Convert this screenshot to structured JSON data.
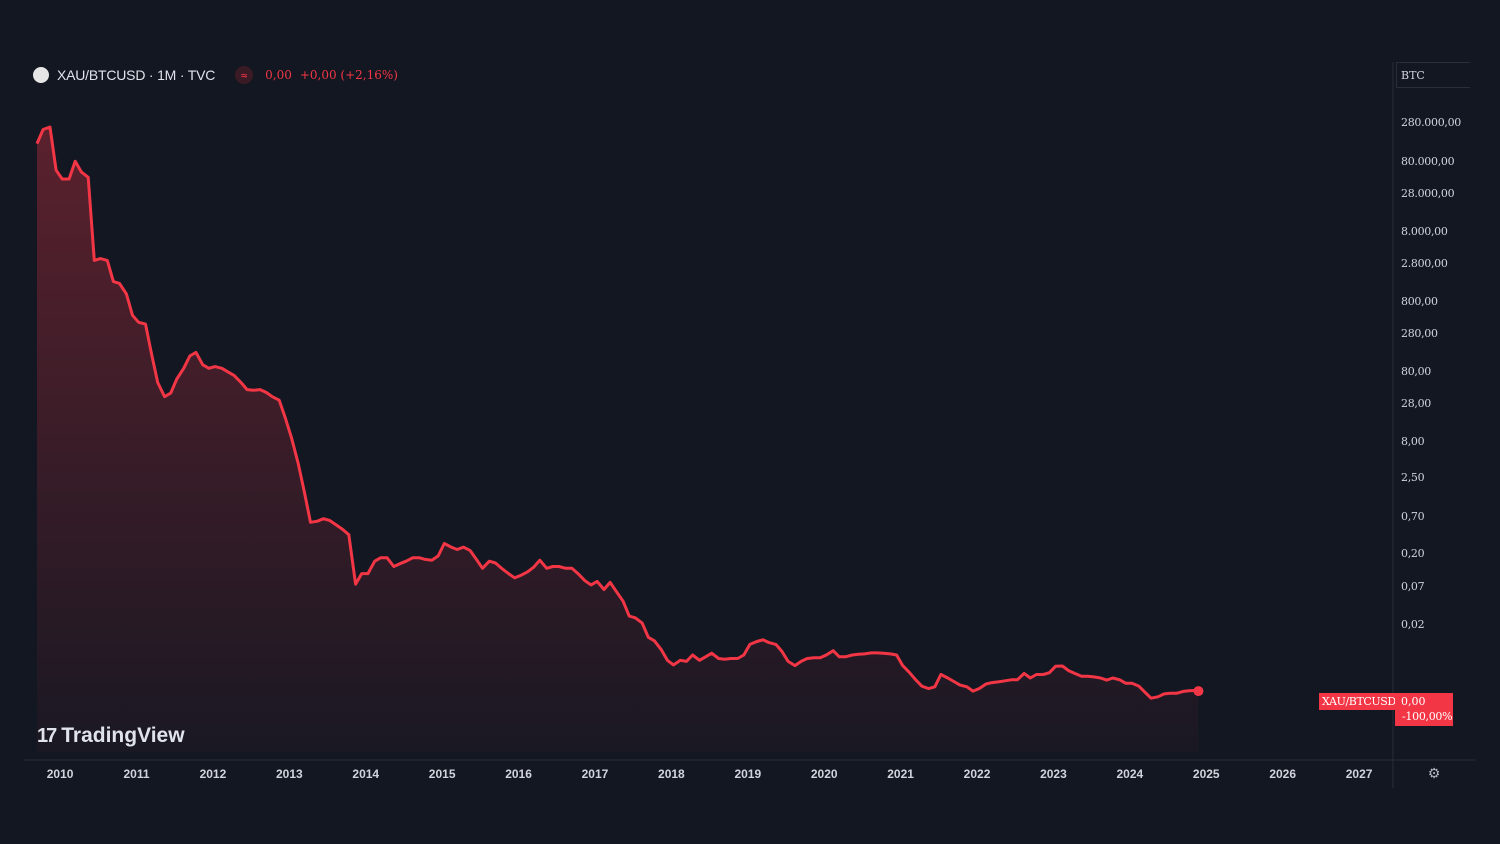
{
  "header": {
    "title": "XAU/BTCUSD · 1M · TVC",
    "eq_symbol": "≈",
    "last_value": "0,00",
    "change": "+0,00 (+2,16%)"
  },
  "price_axis": {
    "currency": "BTC"
  },
  "last_price_tag": {
    "symbol": "XAU/BTCUSD",
    "value": "0,00",
    "percent": "-100,00%"
  },
  "watermark": {
    "text": "TradingView",
    "mark": "17"
  },
  "settings_icon": "gear-icon",
  "colors": {
    "background": "#131722",
    "line": "#f23645",
    "text": "#d1d4dc",
    "grid": "#2a2e39"
  },
  "chart_data": {
    "type": "area",
    "title": "XAU/BTCUSD · 1M · TVC",
    "y_scale": "percent (log-like)",
    "y_tick_labels": [
      "280.000,00",
      "80.000,00",
      "28.000,00",
      "8.000,00",
      "2.800,00",
      "800,00",
      "280,00",
      "80,00",
      "28,00",
      "8,00",
      "2,50",
      "0,70",
      "0,20",
      "0,07",
      "0,02"
    ],
    "x_tick_labels": [
      "2010",
      "2011",
      "2012",
      "2013",
      "2014",
      "2015",
      "2016",
      "2017",
      "2018",
      "2019",
      "2020",
      "2021",
      "2022",
      "2023",
      "2024",
      "2025",
      "2026",
      "2027"
    ],
    "x_range": [
      2009.75,
      2027.3
    ],
    "series": [
      {
        "name": "XAU/BTCUSD",
        "x": [
          2009.75,
          2009.83,
          2009.92,
          2010.0,
          2010.08,
          2010.17,
          2010.25,
          2010.33,
          2010.42,
          2010.5,
          2010.58,
          2010.67,
          2010.75,
          2010.83,
          2010.92,
          2011.0,
          2011.08,
          2011.17,
          2011.25,
          2011.33,
          2011.42,
          2011.5,
          2011.58,
          2011.67,
          2011.75,
          2011.83,
          2011.92,
          2012.0,
          2012.08,
          2012.17,
          2012.25,
          2012.33,
          2012.42,
          2012.5,
          2012.58,
          2012.67,
          2012.75,
          2012.83,
          2012.92,
          2013.0,
          2013.08,
          2013.17,
          2013.25,
          2013.33,
          2013.42,
          2013.5,
          2013.58,
          2013.67,
          2013.75,
          2013.83,
          2013.92,
          2014.0,
          2014.08,
          2014.17,
          2014.25,
          2014.33,
          2014.42,
          2014.5,
          2014.58,
          2014.67,
          2014.75,
          2014.83,
          2014.92,
          2015.0,
          2015.08,
          2015.17,
          2015.25,
          2015.33,
          2015.42,
          2015.5,
          2015.58,
          2015.67,
          2015.75,
          2015.83,
          2015.92,
          2016.0,
          2016.08,
          2016.17,
          2016.25,
          2016.33,
          2016.42,
          2016.5,
          2016.58,
          2016.67,
          2016.75,
          2016.83,
          2016.92,
          2017.0,
          2017.08,
          2017.17,
          2017.25,
          2017.33,
          2017.42,
          2017.5,
          2017.58,
          2017.67,
          2017.75,
          2017.83,
          2017.92,
          2018.0,
          2018.08,
          2018.17,
          2018.25,
          2018.33,
          2018.42,
          2018.5,
          2018.58,
          2018.67,
          2018.75,
          2018.83,
          2018.92,
          2019.0,
          2019.08,
          2019.17,
          2019.25,
          2019.33,
          2019.42,
          2019.5,
          2019.58,
          2019.67,
          2019.75,
          2019.83,
          2019.92,
          2020.0,
          2020.08,
          2020.17,
          2020.25,
          2020.33,
          2020.42,
          2020.5,
          2020.58,
          2020.67,
          2020.75,
          2020.83,
          2020.92,
          2021.0,
          2021.08,
          2021.17,
          2021.25,
          2021.33,
          2021.42,
          2021.5,
          2021.58,
          2021.67,
          2021.75,
          2021.83,
          2021.92,
          2022.0,
          2022.08,
          2022.17,
          2022.25,
          2022.33,
          2022.42,
          2022.5,
          2022.58,
          2022.67,
          2022.75,
          2022.83,
          2022.92,
          2023.0,
          2023.08,
          2023.17,
          2023.25,
          2023.33,
          2023.42,
          2023.5,
          2023.58,
          2023.67,
          2023.75,
          2023.83,
          2023.92,
          2024.0,
          2024.08,
          2024.17,
          2024.25,
          2024.33,
          2024.42,
          2024.5,
          2024.58,
          2024.67,
          2024.75,
          2024.83,
          2024.92,
          2024.95
        ],
        "y_percent_level": [
          0.915,
          0.955,
          0.962,
          0.84,
          0.815,
          0.815,
          0.865,
          0.835,
          0.82,
          0.585,
          0.59,
          0.585,
          0.525,
          0.52,
          0.49,
          0.43,
          0.41,
          0.405,
          0.32,
          0.24,
          0.2,
          0.21,
          0.25,
          0.28,
          0.315,
          0.325,
          0.29,
          0.28,
          0.285,
          0.28,
          0.27,
          0.26,
          0.24,
          0.22,
          0.218,
          0.22,
          0.212,
          0.2,
          0.19,
          0.14,
          0.085,
          0.01,
          -0.07,
          -0.155,
          -0.152,
          -0.145,
          -0.15,
          -0.163,
          -0.175,
          -0.19,
          -0.33,
          -0.3,
          -0.3,
          -0.265,
          -0.255,
          -0.255,
          -0.28,
          -0.272,
          -0.265,
          -0.255,
          -0.255,
          -0.26,
          -0.262,
          -0.25,
          -0.215,
          -0.225,
          -0.232,
          -0.225,
          -0.235,
          -0.26,
          -0.285,
          -0.265,
          -0.27,
          -0.285,
          -0.3,
          -0.312,
          -0.305,
          -0.295,
          -0.282,
          -0.262,
          -0.285,
          -0.28,
          -0.28,
          -0.285,
          -0.285,
          -0.3,
          -0.32,
          -0.332,
          -0.322,
          -0.345,
          -0.325,
          -0.35,
          -0.378,
          -0.42,
          -0.425,
          -0.44,
          -0.48,
          -0.49,
          -0.515,
          -0.545,
          -0.558,
          -0.545,
          -0.548,
          -0.53,
          -0.545,
          -0.535,
          -0.525,
          -0.54,
          -0.542,
          -0.54,
          -0.54,
          -0.53,
          -0.5,
          -0.492,
          -0.487,
          -0.495,
          -0.5,
          -0.52,
          -0.548,
          -0.56,
          -0.548,
          -0.54,
          -0.538,
          -0.538,
          -0.53,
          -0.518,
          -0.535,
          -0.535,
          -0.53,
          -0.528,
          -0.527,
          -0.524,
          -0.524,
          -0.525,
          -0.527,
          -0.53,
          -0.56,
          -0.58,
          -0.6,
          -0.618,
          -0.625,
          -0.62,
          -0.585,
          -0.595,
          -0.605,
          -0.615,
          -0.62,
          -0.632,
          -0.625,
          -0.612,
          -0.608,
          -0.606,
          -0.603,
          -0.6,
          -0.6,
          -0.582,
          -0.595,
          -0.585,
          -0.585,
          -0.58,
          -0.562,
          -0.561,
          -0.574,
          -0.582,
          -0.59,
          -0.59,
          -0.592,
          -0.595,
          -0.601,
          -0.595,
          -0.6,
          -0.61,
          -0.61,
          -0.618,
          -0.635,
          -0.652,
          -0.648,
          -0.64,
          -0.638,
          -0.638,
          -0.633,
          -0.631,
          -0.63,
          -0.632,
          -0.638,
          -0.66,
          -0.66
        ]
      }
    ]
  }
}
